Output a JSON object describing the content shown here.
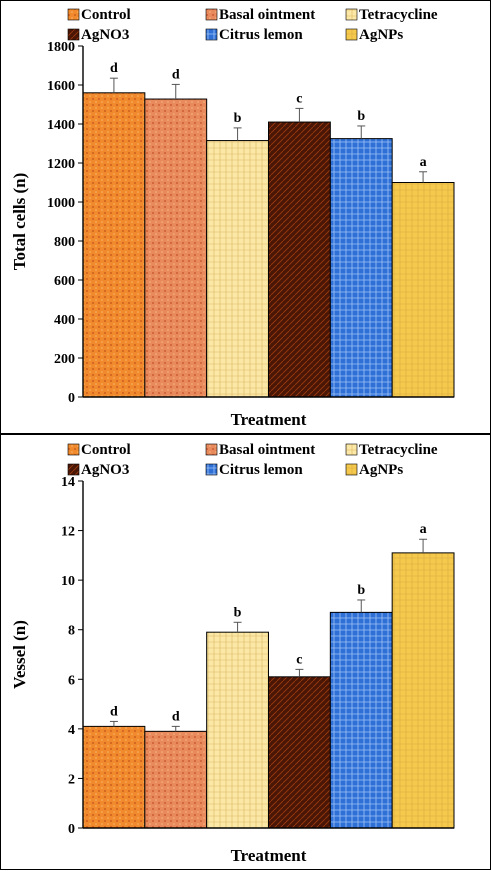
{
  "colors": {
    "control": "#f08a2c",
    "basal_ointment": "#e88a5c",
    "tetracycline": "#fbe8a6",
    "agno3": "#4a1606",
    "citrus_lemon": "#2e70d6",
    "agnps": "#f4c94c"
  },
  "chart_data": [
    {
      "type": "bar",
      "title": "",
      "xlabel": "Treatment",
      "ylabel": "Total cells (n)",
      "ylim": [
        0,
        1800
      ],
      "yticks": [
        0,
        200,
        400,
        600,
        800,
        1000,
        1200,
        1400,
        1600,
        1800
      ],
      "grid": false,
      "legend_position": "top",
      "categories": [
        "Control",
        "Basal ointment",
        "Tetracycline",
        "AgNO3",
        "Citrus lemon",
        "AgNPs"
      ],
      "values": [
        1560,
        1528,
        1315,
        1410,
        1325,
        1100
      ],
      "errors": [
        75,
        75,
        65,
        70,
        65,
        55
      ],
      "significance_letters": [
        "d",
        "d",
        "b",
        "c",
        "b",
        "a"
      ]
    },
    {
      "type": "bar",
      "title": "",
      "xlabel": "Treatment",
      "ylabel": "Vessel (n)",
      "ylim": [
        0,
        14
      ],
      "yticks": [
        0,
        2,
        4,
        6,
        8,
        10,
        12,
        14
      ],
      "grid": false,
      "legend_position": "top",
      "categories": [
        "Control",
        "Basal ointment",
        "Tetracycline",
        "AgNO3",
        "Citrus lemon",
        "AgNPs"
      ],
      "values": [
        4.1,
        3.9,
        7.9,
        6.1,
        8.7,
        11.1
      ],
      "errors": [
        0.2,
        0.2,
        0.4,
        0.3,
        0.5,
        0.55
      ],
      "significance_letters": [
        "d",
        "d",
        "b",
        "c",
        "b",
        "a"
      ]
    }
  ]
}
